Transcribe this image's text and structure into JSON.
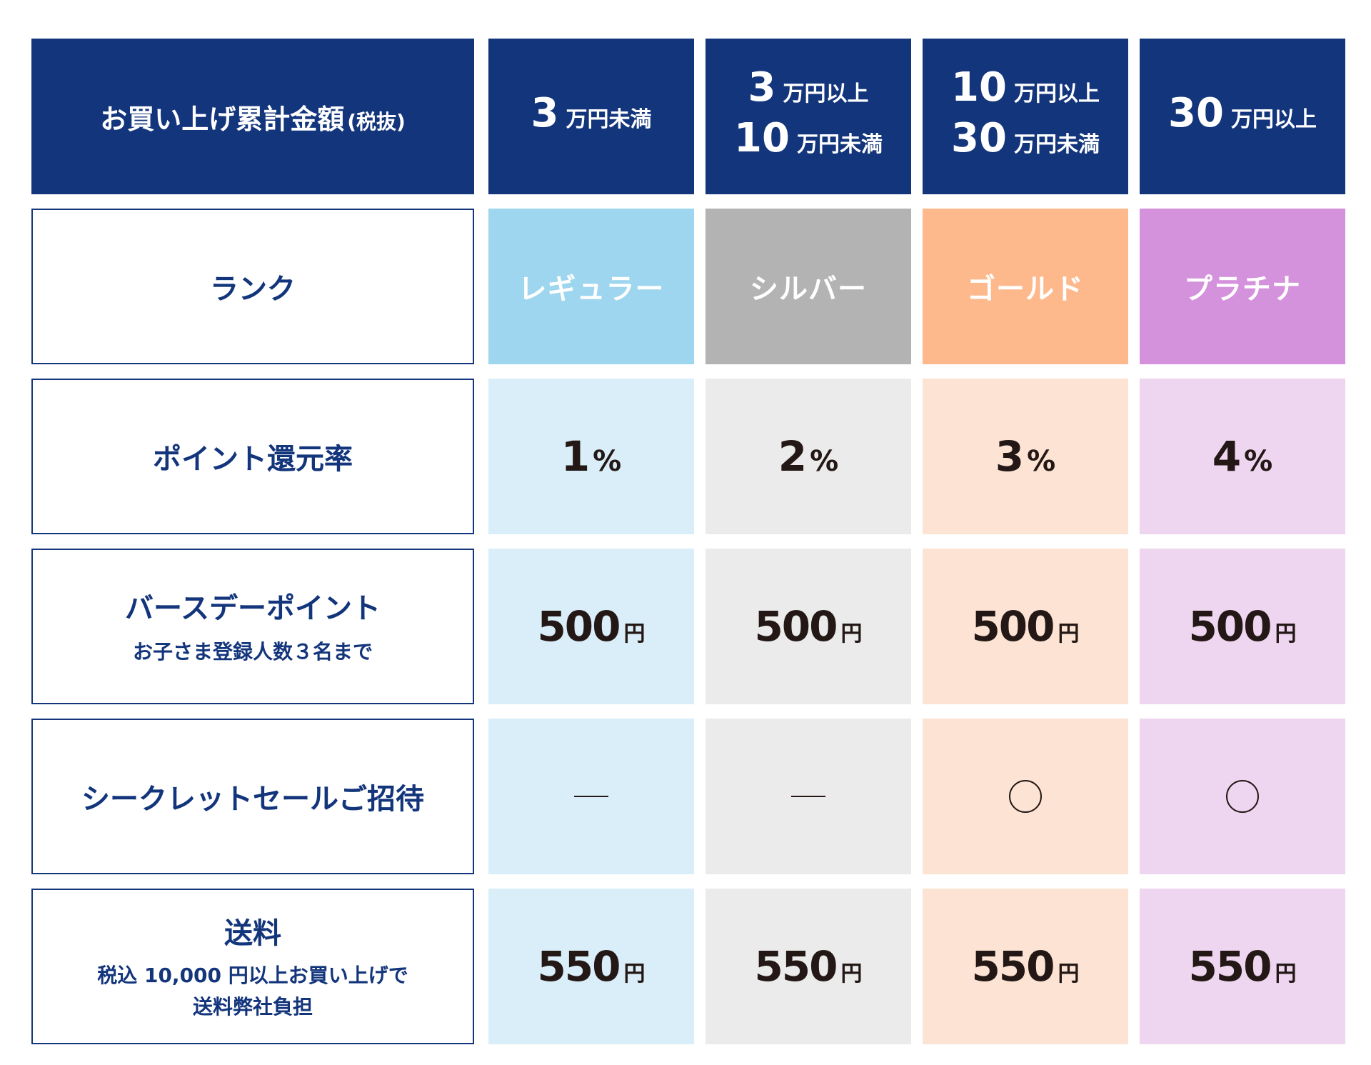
{
  "header": {
    "title": "お買い上げ累計金額",
    "title_note": "(税抜)",
    "tiers": [
      {
        "lines": [
          {
            "num": "3",
            "unit": "万円未満"
          }
        ]
      },
      {
        "lines": [
          {
            "num": "3",
            "unit": "万円以上"
          },
          {
            "num": "10",
            "unit": "万円未満"
          }
        ]
      },
      {
        "lines": [
          {
            "num": "10",
            "unit": "万円以上"
          },
          {
            "num": "30",
            "unit": "万円未満"
          }
        ]
      },
      {
        "lines": [
          {
            "num": "30",
            "unit": "万円以上"
          }
        ]
      }
    ]
  },
  "rows": [
    {
      "label": "ランク",
      "sub": "",
      "values": [
        "レギュラー",
        "シルバー",
        "ゴールド",
        "プラチナ"
      ]
    },
    {
      "label": "ポイント還元率",
      "sub": "",
      "values": [
        "1",
        "2",
        "3",
        "4"
      ],
      "unit": "%"
    },
    {
      "label": "バースデーポイント",
      "sub": "お子さま登録人数３名まで",
      "values": [
        "500",
        "500",
        "500",
        "500"
      ],
      "unit": "円"
    },
    {
      "label": "シークレットセールご招待",
      "sub": "",
      "values": [
        "—",
        "—",
        "○",
        "○"
      ]
    },
    {
      "label": "送料",
      "sub": "税込 10,000 円以上お買い上げで",
      "sub2": "送料弊社負担",
      "values": [
        "550",
        "550",
        "550",
        "550"
      ],
      "unit": "円"
    }
  ],
  "colors": {
    "header_bg": "#13357c",
    "regular": "#9dd6ee",
    "regular_light": "#d9eef8",
    "silver": "#b3b3b3",
    "silver_light": "#ebebeb",
    "gold": "#fdb98b",
    "gold_light": "#fde3d3",
    "platinum": "#d592dc",
    "platinum_light": "#eed5f0"
  }
}
